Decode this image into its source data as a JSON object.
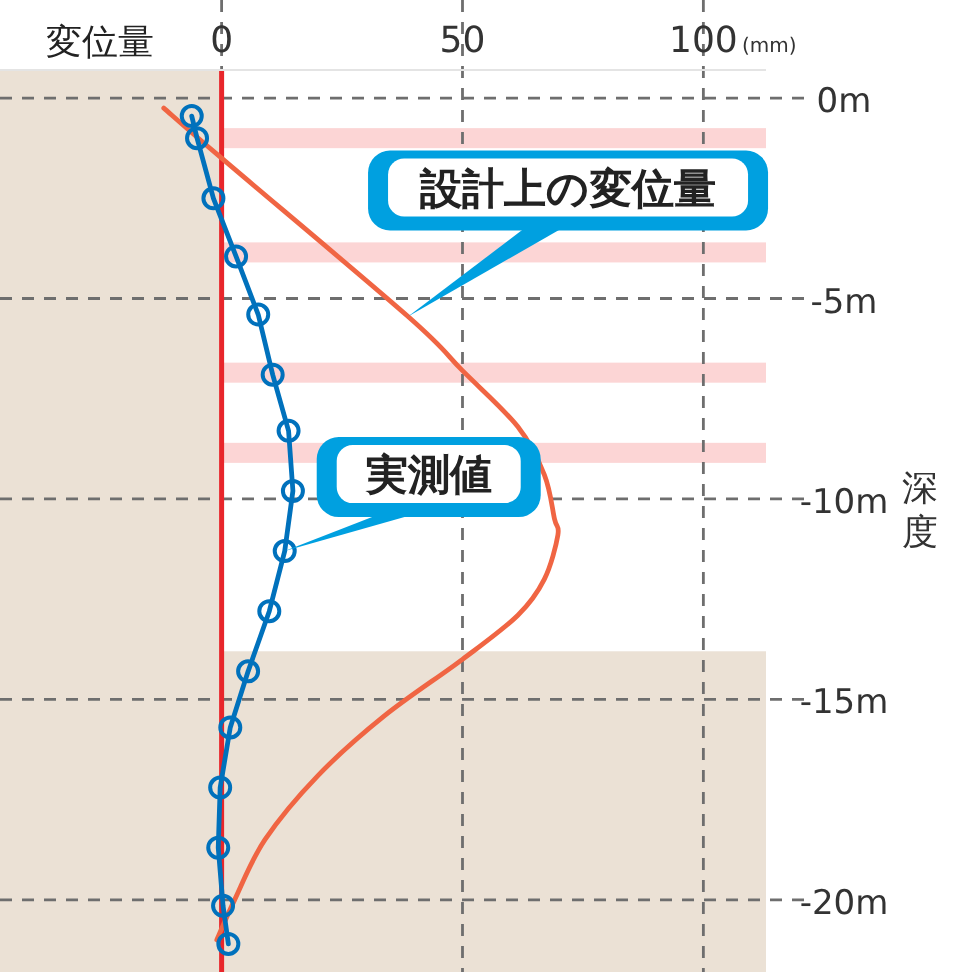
{
  "chart_data": {
    "type": "line",
    "xlabel": "変位量",
    "ylabel": "深度",
    "xlim": [
      -46,
      113
    ],
    "ylim": [
      -21.8,
      0.7
    ],
    "xticks": [
      0,
      50,
      100
    ],
    "yticks": [
      {
        "value": 0,
        "label": "0m"
      },
      {
        "value": -5,
        "label": "-5m"
      },
      {
        "value": -10,
        "label": "-10m"
      },
      {
        "value": -15,
        "label": "-15m"
      },
      {
        "value": -20,
        "label": "-20m"
      }
    ],
    "grid": true,
    "series": [
      {
        "name": "設計上の変位量",
        "color": "#f06543",
        "marker": "none",
        "x": [
          -12,
          0,
          38.7,
          50,
          61.5,
          67,
          69.1,
          69.8,
          67,
          61.5,
          50,
          33.9,
          20,
          9,
          2.7,
          -1
        ],
        "values": [
          -0.25,
          -1.5,
          -5.45,
          -6.8,
          -8.2,
          -9.4,
          -10.5,
          -10.9,
          -12.0,
          -12.9,
          -14.0,
          -15.4,
          -16.9,
          -18.5,
          -20.0,
          -21.0
        ]
      },
      {
        "name": "実測値",
        "color": "#0071bc",
        "marker": "circle",
        "x": [
          -6.2,
          -5.1,
          -1.7,
          3.0,
          7.6,
          10.6,
          13.9,
          14.8,
          13.1,
          9.9,
          5.5,
          1.8,
          -0.3,
          -0.7,
          0.3,
          1.4
        ],
        "values": [
          -0.45,
          -1.0,
          -2.5,
          -3.95,
          -5.4,
          -6.9,
          -8.3,
          -9.8,
          -11.3,
          -12.8,
          -14.3,
          -15.7,
          -17.2,
          -18.7,
          -20.15,
          -21.1
        ]
      }
    ],
    "bands": [
      {
        "axis": "y",
        "from": -1.25,
        "to": -0.75,
        "color": "#fcd5d5"
      },
      {
        "axis": "y",
        "from": -4.1,
        "to": -3.6,
        "color": "#fcd5d5"
      },
      {
        "axis": "y",
        "from": -7.1,
        "to": -6.6,
        "color": "#fcd5d5"
      },
      {
        "axis": "y",
        "from": -9.1,
        "to": -8.6,
        "color": "#fcd5d5"
      },
      {
        "axis": "y",
        "from": -21.8,
        "to": -13.8,
        "color": "#ebe1d5"
      },
      {
        "axis": "x",
        "from": -46,
        "to": 0,
        "color": "#ebe1d5"
      }
    ],
    "ref_lines": [
      {
        "axis": "x",
        "value": 0,
        "color": "#e8262b",
        "line_style": "solid"
      }
    ],
    "annotations": [
      "(mm)"
    ]
  }
}
